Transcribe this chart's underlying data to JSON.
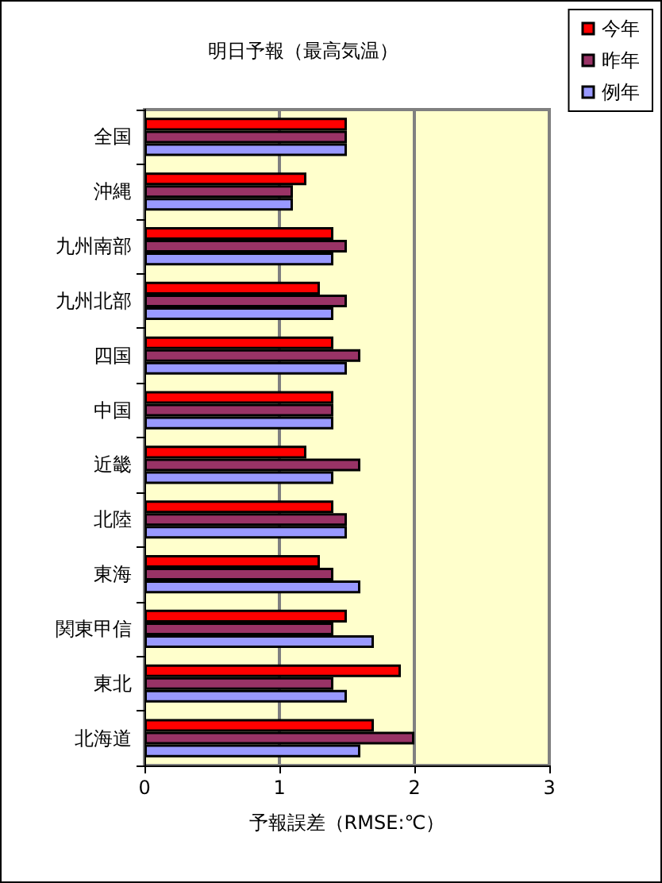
{
  "chart_data": {
    "type": "bar",
    "orientation": "horizontal",
    "title": "明日予報（最高気温）",
    "xlabel": "予報誤差（RMSE:℃）",
    "categories": [
      "全国",
      "沖縄",
      "九州南部",
      "九州北部",
      "四国",
      "中国",
      "近畿",
      "北陸",
      "東海",
      "関東甲信",
      "東北",
      "北海道"
    ],
    "series": [
      {
        "name": "今年",
        "color": "#ff0000",
        "values": [
          1.5,
          1.2,
          1.4,
          1.3,
          1.4,
          1.4,
          1.2,
          1.4,
          1.3,
          1.5,
          1.9,
          1.7
        ]
      },
      {
        "name": "昨年",
        "color": "#993366",
        "values": [
          1.5,
          1.1,
          1.5,
          1.5,
          1.6,
          1.4,
          1.6,
          1.5,
          1.4,
          1.4,
          1.4,
          2.0
        ]
      },
      {
        "name": "例年",
        "color": "#9999ff",
        "values": [
          1.5,
          1.1,
          1.4,
          1.4,
          1.5,
          1.4,
          1.4,
          1.5,
          1.6,
          1.7,
          1.5,
          1.6
        ]
      }
    ],
    "xlim": [
      0,
      3
    ],
    "xticks": [
      0,
      1,
      2,
      3
    ],
    "grid": "x",
    "legend": "top right"
  }
}
